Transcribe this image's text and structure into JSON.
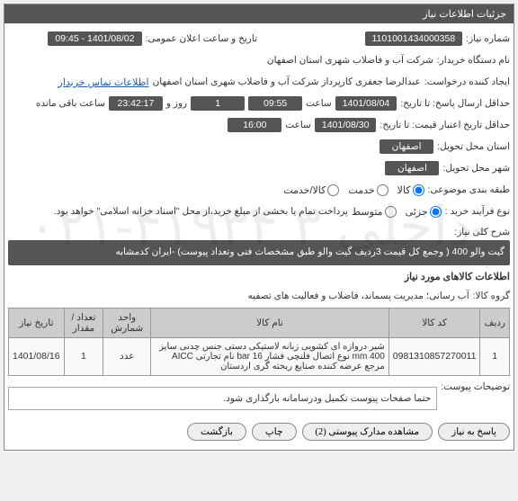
{
  "panel_title": "جزئیات اطلاعات نیاز",
  "fields": {
    "need_number_label": "شماره نیاز:",
    "need_number": "1101001434000358",
    "public_announce_label": "تاریخ و ساعت اعلان عمومی:",
    "public_announce": "1401/08/02 - 09:45",
    "buyer_org_label": "نام دستگاه خریدار:",
    "buyer_org": "شرکت آب و فاضلاب شهری استان اصفهان",
    "requester_label": "ایجاد کننده درخواست:",
    "requester": "عبدالرضا جعفری کارپرداز شرکت آب و فاضلاب شهری استان اصفهان",
    "contact_link": "اطلاعات تماس خریدار",
    "deadline_label": "حداقل ارسال پاسخ: تا تاریخ:",
    "deadline_date": "1401/08/04",
    "deadline_time_label": "ساعت",
    "deadline_time": "09:55",
    "days_label": "روز و",
    "days": "1",
    "hours_remain": "23:42:17",
    "hours_remain_label": "ساعت باقی مانده",
    "validity_label": "حداقل تاریخ اعتبار قیمت: تا تاریخ:",
    "validity_date": "1401/08/30",
    "validity_time_label": "ساعت",
    "validity_time": "16:00",
    "city_label": "استان محل تحویل:",
    "city": "اصفهان",
    "city2_label": "شهر محل تحویل:",
    "city2": "اصفهان",
    "category_label": "طبقه بندی موضوعی:",
    "radio_goods": "کالا",
    "radio_service": "خدمت",
    "radio_both": "کالا/خدمت",
    "process_label": "نوع فرآیند خرید :",
    "radio_partial": "جزئی",
    "radio_medium": "متوسط",
    "process_note": "پرداخت تمام یا بخشی از مبلغ خرید،از محل \"اسناد خزانه اسلامی\" خواهد بود.",
    "desc_label": "شرح کلی نیاز:",
    "desc_text": "گیت والو 400 ( وجمع کل قیمت 3ردیف گیت والو طبق مشخصات فنی وتعداد پیوست) -ایران کدمشابه",
    "goods_header": "اطلاعات کالاهای مورد نیاز",
    "group_label": "گروه کالا:",
    "group_value": "آب رسانی؛ مدیریت پسماند، فاضلاب و فعالیت های تصفیه"
  },
  "table": {
    "headers": [
      "ردیف",
      "کد کالا",
      "نام کالا",
      "واحد شمارش",
      "تعداد / مقدار",
      "تاریخ نیاز"
    ],
    "rows": [
      [
        "1",
        "0981310857270011",
        "شیر دروازه ای کشویی زبانه لاستیکی دستی جنس چدنی سایز mm 400 نوع اتصال فلنچی فشار bar 16 نام تجارتی AICC مرجع عرضه کننده صنایع ریخته گری اردستان",
        "عدد",
        "1",
        "1401/08/16"
      ]
    ]
  },
  "note_label": "توضیحات پیوست:",
  "note_text": "حتما صفحات پیوست تکمیل ودرسامانه بارگذاری شود.",
  "buttons": {
    "reply": "پاسخ به نیاز",
    "attachments": "مشاهده مدارک پیوستی (2)",
    "print": "چاپ",
    "back": "بازگشت"
  },
  "watermark": "۰۲۱-۴۱۹۳۴ داخلی ۳-"
}
